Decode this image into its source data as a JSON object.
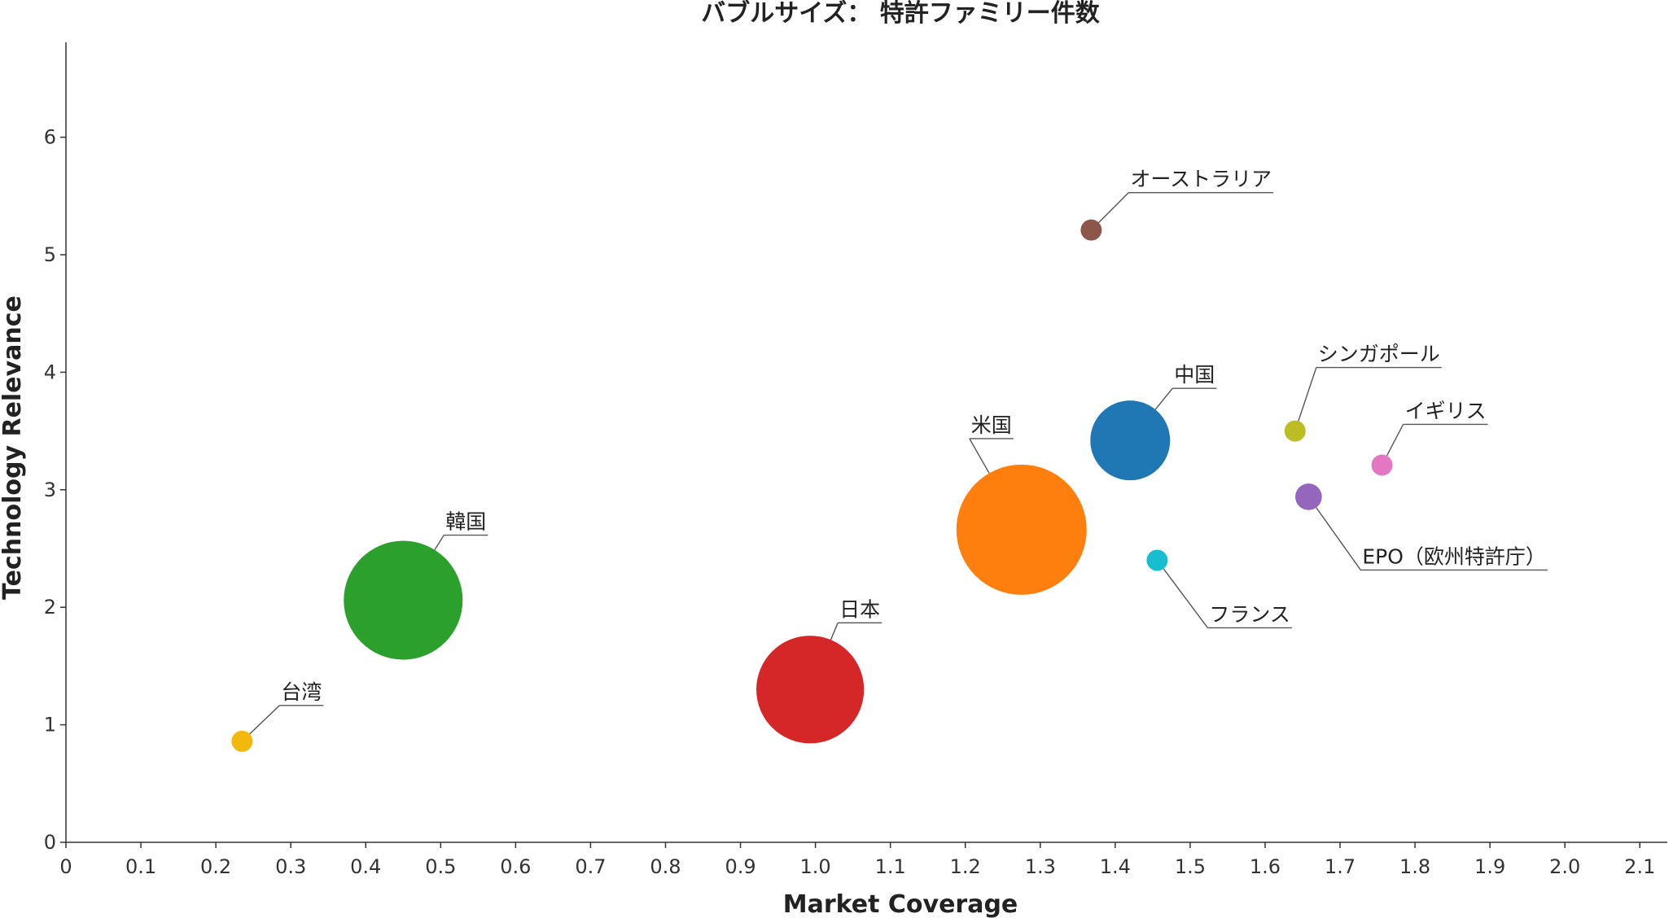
{
  "chart_data": {
    "type": "scatter",
    "title": "バブルサイズ： 特許ファミリー件数",
    "xlabel": "Market Coverage",
    "ylabel": "Technology Relevance",
    "xlim": [
      0,
      2.15
    ],
    "ylim": [
      0,
      6.8
    ],
    "xticks": [
      0,
      0.1,
      0.2,
      0.3,
      0.4,
      0.5,
      0.6,
      0.7,
      0.8,
      0.9,
      1.0,
      1.1,
      1.2,
      1.3,
      1.4,
      1.5,
      1.6,
      1.7,
      1.8,
      1.9,
      2.0,
      2.1
    ],
    "xtick_labels": [
      "0",
      "0.1",
      "0.2",
      "0.3",
      "0.4",
      "0.5",
      "0.6",
      "0.7",
      "0.8",
      "0.9",
      "1.0",
      "1.1",
      "1.2",
      "1.3",
      "1.4",
      "1.5",
      "1.6",
      "1.7",
      "1.8",
      "1.9",
      "2.0",
      "2.1"
    ],
    "yticks": [
      0,
      1,
      2,
      3,
      4,
      5,
      6
    ],
    "ytick_labels": [
      "0",
      "1",
      "2",
      "3",
      "4",
      "5",
      "6"
    ],
    "grid": false,
    "legend": "none",
    "points": [
      {
        "label": "台湾",
        "x": 0.235,
        "y": 0.86,
        "size": 1,
        "color": "#f2b80c"
      },
      {
        "label": "韓国",
        "x": 0.45,
        "y": 2.06,
        "size": 100,
        "color": "#2ca02c"
      },
      {
        "label": "日本",
        "x": 0.993,
        "y": 1.3,
        "size": 82,
        "color": "#d62728"
      },
      {
        "label": "米国",
        "x": 1.275,
        "y": 2.66,
        "size": 120,
        "color": "#ff7f0e"
      },
      {
        "label": "中国",
        "x": 1.42,
        "y": 3.42,
        "size": 45,
        "color": "#1f77b4"
      },
      {
        "label": "オーストラリア",
        "x": 1.368,
        "y": 5.21,
        "size": 1,
        "color": "#8c564b"
      },
      {
        "label": "フランス",
        "x": 1.456,
        "y": 2.4,
        "size": 1,
        "color": "#17becf"
      },
      {
        "label": "シンガポール",
        "x": 1.64,
        "y": 3.5,
        "size": 1,
        "color": "#bcbd22"
      },
      {
        "label": "イギリス",
        "x": 1.756,
        "y": 3.21,
        "size": 3,
        "color": "#e377c2"
      },
      {
        "label": "EPO（欧州特許庁）",
        "x": 1.658,
        "y": 2.94,
        "size": 5,
        "color": "#9467bd"
      }
    ]
  }
}
